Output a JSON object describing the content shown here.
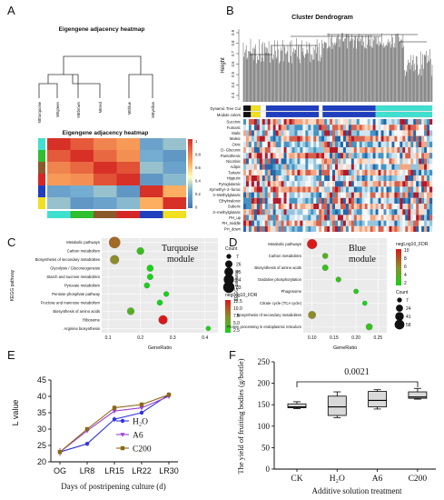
{
  "panels": {
    "A": {
      "letter": "A",
      "dendro_title": "Eigengene adjacency heatmap",
      "heat_title": "Eigengene adjacency heatmap",
      "leaves": [
        "MEturquoise",
        "MEgreen",
        "MEbrown",
        "MEred",
        "MEblue",
        "MEyellow"
      ],
      "scale_ticks": [
        "1",
        "0.8",
        "0.6",
        "0.4",
        "0.2",
        "0"
      ],
      "module_colors": [
        "#40e0d0",
        "#2fbf2f",
        "#8b5a2b",
        "#d62728",
        "#1f3fbf",
        "#f0e020"
      ]
    },
    "B": {
      "letter": "B",
      "title": "Cluster Dendrogram",
      "ylabel": "Height",
      "yticks": [
        "0.9",
        "0.8",
        "0.7",
        "0.6",
        "0.5",
        "0.4",
        "0.3"
      ],
      "track_labels": [
        "Dynamic Tree Cut",
        "Module colors"
      ],
      "traits": [
        "Succinic",
        "Fumaric",
        "Malic",
        "Maleic",
        "Citric",
        "D−Gluconic",
        "Pantothenic",
        "Nicotinic",
        "Adipic",
        "Tartaric",
        "Hippuric",
        "Pyroglutamic",
        "Xymethyl−2−furoic",
        "3−Methylglutaric",
        "Ethylmalonic",
        "Suberic",
        "3−methylglutaric",
        "PH_up",
        "PH_middle",
        "PH_down"
      ]
    },
    "C": {
      "letter": "C",
      "module_label": [
        "Turquoise",
        "module"
      ],
      "ylabel": "KEGG pathway",
      "xlabel": "GeneRatio",
      "xticks": [
        "0.1",
        "0.2",
        "0.3",
        "0.4"
      ],
      "size_legend_title": "Count",
      "size_legend": [
        "7",
        "26",
        "45",
        "64",
        "83"
      ],
      "color_legend_title": "negLog10_FDR",
      "color_legend": [
        "12.5",
        "10.0",
        "7.5",
        "5.0",
        "2.5"
      ]
    },
    "D": {
      "letter": "D",
      "module_label": [
        "Blue",
        "module"
      ],
      "ylabel": "KEGG pathway",
      "xlabel": "GeneRatio",
      "xticks": [
        "0.10",
        "0.15",
        "0.20",
        "0.25"
      ],
      "size_legend_title": "Count",
      "size_legend": [
        "7",
        "24",
        "41",
        "58"
      ],
      "color_legend_title": "negLog10_FDR",
      "color_legend": [
        "10",
        "8",
        "6",
        "4",
        "2"
      ]
    },
    "E": {
      "letter": "E",
      "ylabel": "L value",
      "xlabel": "Days of postripening culture (d)",
      "yticks": [
        "20",
        "25",
        "30",
        "35",
        "40",
        "45"
      ]
    },
    "F": {
      "letter": "F",
      "ylabel": "The yield of fruiting bodies (g/bottle)",
      "xlabel": "Additive solution treatment",
      "yticks": [
        "0",
        "50",
        "100",
        "150",
        "200",
        "250"
      ],
      "pvalue": "0.0021"
    }
  },
  "chart_data": [
    {
      "type": "dot",
      "panel": "C",
      "title": "",
      "xlabel": "GeneRatio",
      "ylabel": "KEGG pathway",
      "xlim": [
        0.08,
        0.44
      ],
      "categories": [
        "Metabolic pathways",
        "Carbon metabolism",
        "Biosynthesis of secondary metabolites",
        "Glycolysis / Gluconeogenesis",
        "Starch and sucrose metabolism",
        "Pyruvate metabolism",
        "Pentose phosphate pathway",
        "Fructose and mannose metabolism",
        "Biosynthesis of amino acids",
        "Ribosome",
        "Arginine biosynthesis"
      ],
      "gene_ratio": [
        0.12,
        0.2,
        0.12,
        0.23,
        0.23,
        0.22,
        0.28,
        0.26,
        0.17,
        0.27,
        0.41
      ],
      "count": [
        83,
        26,
        45,
        20,
        15,
        12,
        10,
        12,
        25,
        45,
        7
      ],
      "neglog10_fdr": [
        9.0,
        4.0,
        7.5,
        2.5,
        2.5,
        2.5,
        2.5,
        2.5,
        5.0,
        12.5,
        2.5
      ]
    },
    {
      "type": "dot",
      "panel": "D",
      "title": "",
      "xlabel": "GeneRatio",
      "ylabel": "KEGG pathway",
      "xlim": [
        0.08,
        0.27
      ],
      "categories": [
        "Metabolic pathways",
        "Carbon metabolism",
        "Biosynthesis of amino acids",
        "Oxidative phosphorylation",
        "Phagosome",
        "Citrate cycle (TCA cycle)",
        "Biosynthesis of secondary metabolites",
        "Protein processing in endoplasmic reticulum"
      ],
      "gene_ratio": [
        0.1,
        0.13,
        0.13,
        0.16,
        0.2,
        0.22,
        0.1,
        0.23
      ],
      "count": [
        58,
        12,
        15,
        10,
        8,
        7,
        30,
        20
      ],
      "neglog10_fdr": [
        10,
        4,
        3,
        3,
        2.5,
        2,
        6,
        3
      ]
    },
    {
      "type": "line",
      "panel": "E",
      "title": "",
      "xlabel": "Days of postripening culture (d)",
      "ylabel": "L value",
      "categories": [
        "OG",
        "LR8",
        "LR15",
        "LR22",
        "LR30"
      ],
      "ylim": [
        20,
        45
      ],
      "series": [
        {
          "name": "H₂O",
          "color": "#3333dd",
          "marker": "circle",
          "values": [
            23,
            25.5,
            33,
            35,
            40.5
          ],
          "err": [
            1.2,
            0.6,
            0.8,
            0.6,
            0.8
          ]
        },
        {
          "name": "A6",
          "color": "#9b3fd6",
          "marker": "triangle",
          "values": [
            23,
            29.5,
            35.5,
            36.5,
            40
          ],
          "err": [
            1.2,
            0.7,
            0.8,
            0.7,
            0.8
          ]
        },
        {
          "name": "C200",
          "color": "#8b6914",
          "marker": "square",
          "values": [
            23,
            30,
            36.5,
            37.5,
            40.5
          ],
          "err": [
            1.2,
            0.6,
            0.8,
            0.7,
            0.8
          ]
        }
      ]
    },
    {
      "type": "box",
      "panel": "F",
      "title": "",
      "xlabel": "Additive solution treatment",
      "ylabel": "The yield of fruiting bodies (g/bottle)",
      "categories": [
        "CK",
        "H₂O",
        "A6",
        "C200"
      ],
      "ylim": [
        0,
        250
      ],
      "boxes": [
        {
          "min": 141,
          "q1": 143,
          "median": 145,
          "q3": 152,
          "max": 157
        },
        {
          "min": 120,
          "q1": 125,
          "median": 145,
          "q3": 170,
          "max": 180
        },
        {
          "min": 140,
          "q1": 145,
          "median": 160,
          "q3": 181,
          "max": 185
        },
        {
          "min": 163,
          "q1": 165,
          "median": 168,
          "q3": 180,
          "max": 188
        }
      ]
    }
  ]
}
